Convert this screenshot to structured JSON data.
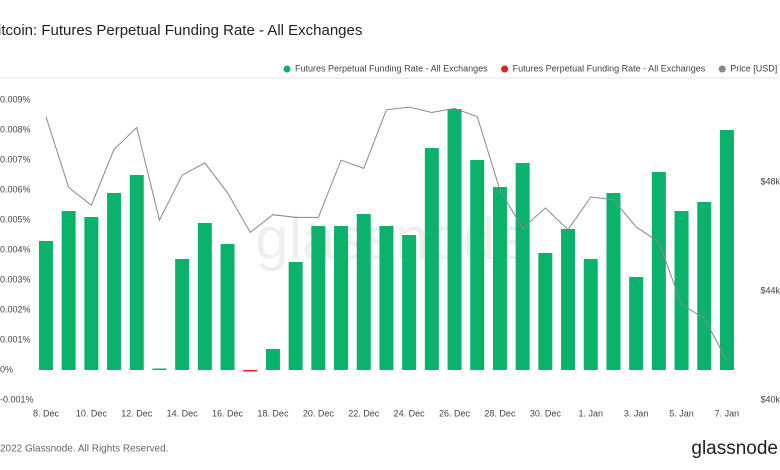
{
  "chart_data": {
    "type": "bar",
    "title": "itcoin: Futures Perpetual Funding Rate - All Exchanges",
    "watermark": "glassnode",
    "footer": "2022 Glassnode. All Rights Reserved.",
    "logo": "glassnode",
    "categories": [
      "8. Dec",
      null,
      "10. Dec",
      null,
      "12. Dec",
      null,
      "14. Dec",
      null,
      "16. Dec",
      null,
      "18. Dec",
      null,
      "20. Dec",
      null,
      "22. Dec",
      null,
      "24. Dec",
      null,
      "26. Dec",
      null,
      "28. Dec",
      null,
      "30. Dec",
      null,
      "1. Jan",
      null,
      "3. Jan",
      null,
      "5. Jan",
      null,
      "7. Jan"
    ],
    "series": [
      {
        "name": "Futures Perpetual Funding Rate - All Exchanges",
        "color": "#0ab26b",
        "type": "bar",
        "values": [
          0.0043,
          0.0053,
          0.0051,
          0.0059,
          0.0065,
          5e-05,
          0.0037,
          0.0049,
          0.0042,
          null,
          0.0007,
          0.0036,
          0.0048,
          0.0048,
          0.0052,
          0.0048,
          0.0045,
          0.0074,
          0.0087,
          0.007,
          0.0061,
          0.0069,
          0.0039,
          0.0047,
          0.0037,
          0.0059,
          0.0031,
          0.0066,
          0.0053,
          0.0056,
          0.008
        ]
      },
      {
        "name": "Futures Perpetual Funding Rate - All Exchanges",
        "color": "#e02020",
        "type": "bar",
        "values": [
          null,
          null,
          null,
          null,
          null,
          null,
          null,
          null,
          null,
          -5e-05,
          null,
          null,
          null,
          null,
          null,
          null,
          null,
          null,
          null,
          null,
          null,
          null,
          null,
          null,
          null,
          null,
          null,
          null,
          null,
          null,
          null
        ]
      },
      {
        "name": "Price [USD]",
        "color": "#888888",
        "type": "line",
        "axis": "y2",
        "values": [
          50400,
          47800,
          47150,
          49200,
          50000,
          46600,
          48250,
          48700,
          47600,
          46150,
          46800,
          46700,
          46700,
          48800,
          48500,
          50650,
          50750,
          50550,
          50700,
          50400,
          47700,
          46300,
          47050,
          46250,
          47450,
          47350,
          46350,
          45800,
          43500,
          43000,
          41450
        ]
      }
    ],
    "ylim": [
      -0.001,
      0.0095
    ],
    "yticks": [
      {
        "value": -0.001,
        "label": "-0.001%"
      },
      {
        "value": 0,
        "label": "0%"
      },
      {
        "value": 0.001,
        "label": "0.001%"
      },
      {
        "value": 0.002,
        "label": "0.002%"
      },
      {
        "value": 0.003,
        "label": "0.003%"
      },
      {
        "value": 0.004,
        "label": "0.004%"
      },
      {
        "value": 0.005,
        "label": "0.005%"
      },
      {
        "value": 0.006,
        "label": "0.006%"
      },
      {
        "value": 0.007,
        "label": "0.007%"
      },
      {
        "value": 0.008,
        "label": "0.008%"
      },
      {
        "value": 0.009,
        "label": "0.009%"
      }
    ],
    "y2lim": [
      40000,
      51560
    ],
    "y2ticks": [
      {
        "value": 40000,
        "label": "$40k"
      },
      {
        "value": 44000,
        "label": "$44k"
      },
      {
        "value": 48000,
        "label": "$48k"
      }
    ],
    "grid": false
  }
}
